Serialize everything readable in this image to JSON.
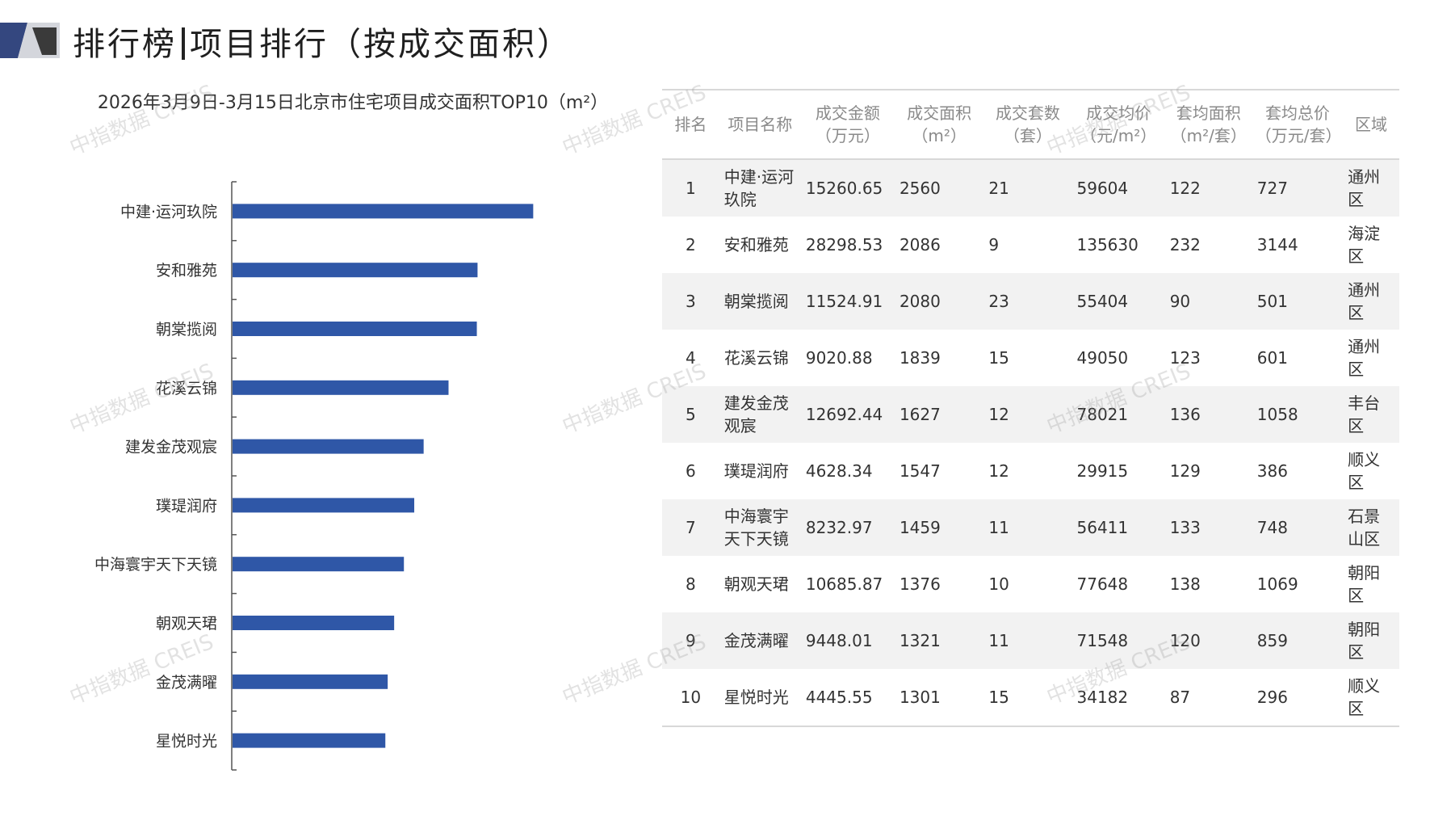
{
  "page": {
    "title_left": "排行榜",
    "title_right": "项目排行（按成交面积）"
  },
  "chart_data": {
    "type": "bar",
    "orientation": "horizontal",
    "title": "2026年3月9日-3月15日北京市住宅项目成交面积TOP10（m²）",
    "categories": [
      "中建·运河玖院",
      "安和雅苑",
      "朝棠揽阅",
      "花溪云锦",
      "建发金茂观宸",
      "璞瑅润府",
      "中海寰宇天下天镜",
      "朝观天珺",
      "金茂满曜",
      "星悦时光"
    ],
    "values": [
      2560,
      2086,
      2080,
      1839,
      1627,
      1547,
      1459,
      1376,
      1321,
      1301
    ],
    "xlim": [
      0,
      3300
    ],
    "grid": false,
    "bar_color": "#2f57a7"
  },
  "table": {
    "headers": [
      "排名",
      "项目名称",
      "成交金额\n（万元）",
      "成交面积\n（m²）",
      "成交套数\n（套）",
      "成交均价\n（元/m²）",
      "套均面积\n（m²/套）",
      "套均总价\n（万元/套）",
      "区域"
    ],
    "rows": [
      [
        "1",
        "中建·运河玖院",
        "15260.65",
        "2560",
        "21",
        "59604",
        "122",
        "727",
        "通州区"
      ],
      [
        "2",
        "安和雅苑",
        "28298.53",
        "2086",
        "9",
        "135630",
        "232",
        "3144",
        "海淀区"
      ],
      [
        "3",
        "朝棠揽阅",
        "11524.91",
        "2080",
        "23",
        "55404",
        "90",
        "501",
        "通州区"
      ],
      [
        "4",
        "花溪云锦",
        "9020.88",
        "1839",
        "15",
        "49050",
        "123",
        "601",
        "通州区"
      ],
      [
        "5",
        "建发金茂观宸",
        "12692.44",
        "1627",
        "12",
        "78021",
        "136",
        "1058",
        "丰台区"
      ],
      [
        "6",
        "璞瑅润府",
        "4628.34",
        "1547",
        "12",
        "29915",
        "129",
        "386",
        "顺义区"
      ],
      [
        "7",
        "中海寰宇天下天镜",
        "8232.97",
        "1459",
        "11",
        "56411",
        "133",
        "748",
        "石景山区"
      ],
      [
        "8",
        "朝观天珺",
        "10685.87",
        "1376",
        "10",
        "77648",
        "138",
        "1069",
        "朝阳区"
      ],
      [
        "9",
        "金茂满曜",
        "9448.01",
        "1321",
        "11",
        "71548",
        "120",
        "859",
        "朝阳区"
      ],
      [
        "10",
        "星悦时光",
        "4445.55",
        "1301",
        "15",
        "34182",
        "87",
        "296",
        "顺义区"
      ]
    ]
  },
  "watermark": "中指数据 CREIS",
  "colors": {
    "accent_dark": "#2f4a8c",
    "accent_light": "#c9d0dc",
    "bar": "#2f57a7"
  }
}
